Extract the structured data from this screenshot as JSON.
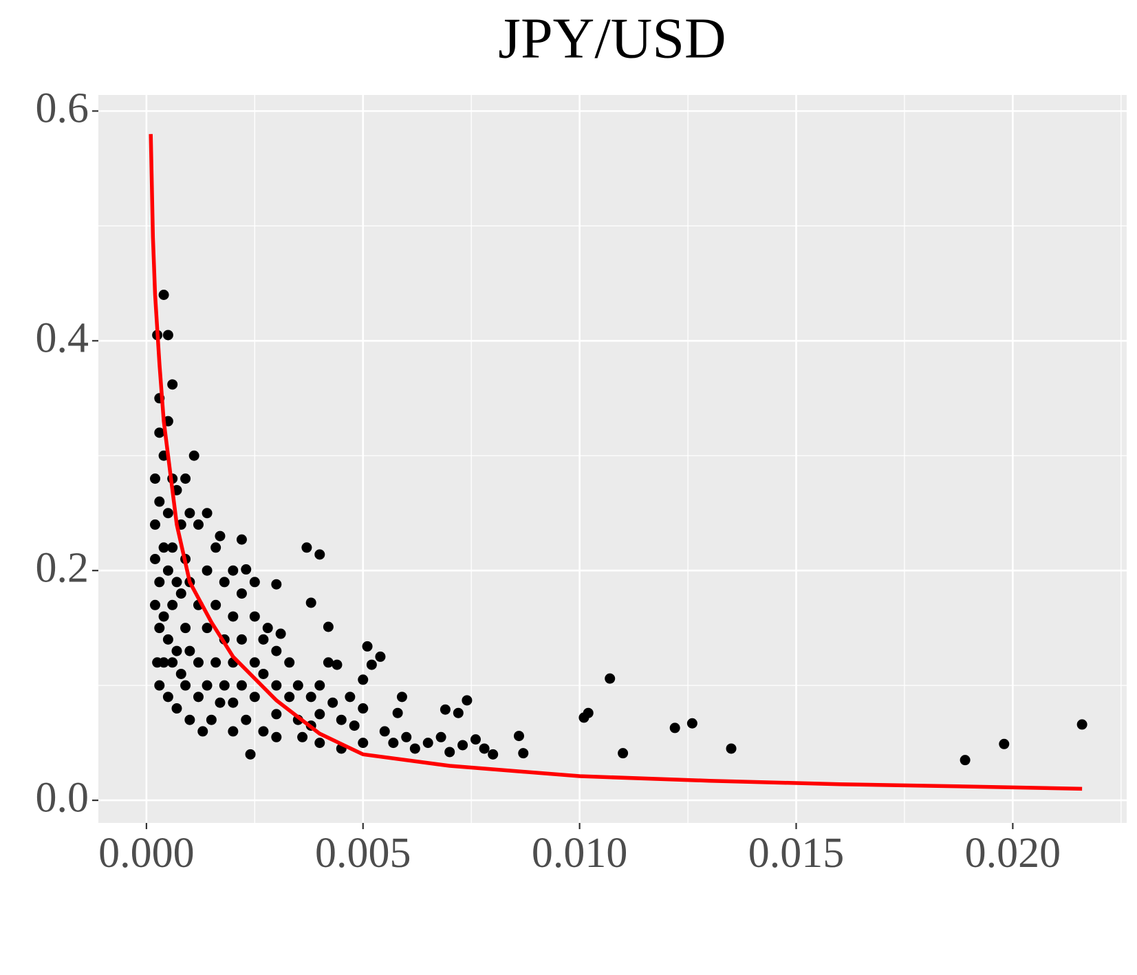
{
  "chart_data": {
    "type": "scatter",
    "title": "JPY/USD",
    "xlim": [
      -0.00111,
      0.02263
    ],
    "ylim": [
      -0.0197,
      0.614
    ],
    "xticks": [
      {
        "value": 0,
        "label": "0.000"
      },
      {
        "value": 0.005,
        "label": "0.005"
      },
      {
        "value": 0.01,
        "label": "0.010"
      },
      {
        "value": 0.015,
        "label": "0.015"
      },
      {
        "value": 0.02,
        "label": "0.020"
      }
    ],
    "yticks": [
      {
        "value": 0,
        "label": "0.0"
      },
      0.2,
      0.4,
      0.6
    ],
    "grid": true,
    "series": [
      {
        "type": "scatter",
        "color": "#000000",
        "x": [
          0.0107,
          0.0102,
          0.0101,
          0.011,
          0.0122,
          0.0126,
          0.0135,
          0.0189,
          0.0198,
          0.0216,
          0.0086,
          0.0087,
          0.0074,
          0.0072,
          0.0069,
          0.0059,
          0.0058,
          0.0054,
          0.0051,
          0.0037,
          0.004,
          0.0038,
          0.0042,
          0.003,
          0.0022,
          0.0023,
          0.0011,
          0.0006,
          0.0004,
          0.00025,
          0.0005,
          0.0003,
          0.0002,
          0.0002,
          0.0002,
          0.0002,
          0.00025,
          0.0003,
          0.0003,
          0.0003,
          0.0003,
          0.0003,
          0.0004,
          0.0004,
          0.0004,
          0.0004,
          0.0005,
          0.0005,
          0.0005,
          0.0005,
          0.0005,
          0.0006,
          0.0006,
          0.0006,
          0.0006,
          0.0007,
          0.0007,
          0.0007,
          0.0007,
          0.0008,
          0.0008,
          0.0008,
          0.0009,
          0.0009,
          0.0009,
          0.0009,
          0.001,
          0.001,
          0.001,
          0.001,
          0.0012,
          0.0012,
          0.0012,
          0.0012,
          0.0013,
          0.0014,
          0.0014,
          0.0014,
          0.0014,
          0.0015,
          0.0016,
          0.0016,
          0.0016,
          0.0017,
          0.0017,
          0.0018,
          0.0018,
          0.0018,
          0.002,
          0.002,
          0.002,
          0.002,
          0.002,
          0.0022,
          0.0022,
          0.0022,
          0.0023,
          0.0024,
          0.0025,
          0.0025,
          0.0025,
          0.0025,
          0.0027,
          0.0027,
          0.0027,
          0.0028,
          0.003,
          0.003,
          0.003,
          0.003,
          0.0031,
          0.0033,
          0.0033,
          0.0035,
          0.0035,
          0.0036,
          0.0038,
          0.0038,
          0.004,
          0.004,
          0.004,
          0.0042,
          0.0043,
          0.0044,
          0.0045,
          0.0045,
          0.0047,
          0.0048,
          0.005,
          0.005,
          0.005,
          0.0052,
          0.0055,
          0.0057,
          0.006,
          0.0062,
          0.0065,
          0.0068,
          0.007,
          0.0073,
          0.0076,
          0.0078,
          0.008
        ],
        "values": [
          0.106,
          0.076,
          0.072,
          0.041,
          0.063,
          0.067,
          0.045,
          0.035,
          0.049,
          0.066,
          0.056,
          0.041,
          0.087,
          0.076,
          0.079,
          0.09,
          0.076,
          0.125,
          0.134,
          0.22,
          0.214,
          0.172,
          0.151,
          0.188,
          0.227,
          0.201,
          0.3,
          0.362,
          0.44,
          0.405,
          0.405,
          0.35,
          0.28,
          0.24,
          0.21,
          0.17,
          0.12,
          0.32,
          0.26,
          0.19,
          0.15,
          0.1,
          0.3,
          0.22,
          0.16,
          0.12,
          0.33,
          0.25,
          0.2,
          0.14,
          0.09,
          0.28,
          0.22,
          0.17,
          0.12,
          0.27,
          0.19,
          0.13,
          0.08,
          0.24,
          0.18,
          0.11,
          0.28,
          0.21,
          0.15,
          0.1,
          0.25,
          0.19,
          0.13,
          0.07,
          0.24,
          0.17,
          0.12,
          0.09,
          0.06,
          0.25,
          0.2,
          0.15,
          0.1,
          0.07,
          0.22,
          0.17,
          0.12,
          0.085,
          0.23,
          0.19,
          0.14,
          0.1,
          0.2,
          0.16,
          0.12,
          0.085,
          0.06,
          0.18,
          0.14,
          0.1,
          0.07,
          0.04,
          0.19,
          0.16,
          0.12,
          0.09,
          0.14,
          0.11,
          0.06,
          0.15,
          0.13,
          0.1,
          0.075,
          0.055,
          0.145,
          0.12,
          0.09,
          0.1,
          0.07,
          0.055,
          0.09,
          0.065,
          0.1,
          0.075,
          0.05,
          0.12,
          0.085,
          0.118,
          0.07,
          0.045,
          0.09,
          0.065,
          0.105,
          0.08,
          0.05,
          0.118,
          0.06,
          0.05,
          0.055,
          0.045,
          0.05,
          0.055,
          0.042,
          0.048,
          0.053,
          0.045,
          0.04
        ]
      },
      {
        "type": "line",
        "color": "#ff0000",
        "x": [
          0.0001,
          0.00015,
          0.0002,
          0.0003,
          0.0004,
          0.0005,
          0.0007,
          0.001,
          0.0015,
          0.002,
          0.003,
          0.004,
          0.005,
          0.007,
          0.01,
          0.013,
          0.016,
          0.019,
          0.0216
        ],
        "values": [
          0.58,
          0.49,
          0.44,
          0.38,
          0.33,
          0.3,
          0.24,
          0.19,
          0.155,
          0.125,
          0.087,
          0.058,
          0.04,
          0.03,
          0.021,
          0.017,
          0.014,
          0.012,
          0.01
        ]
      }
    ]
  }
}
